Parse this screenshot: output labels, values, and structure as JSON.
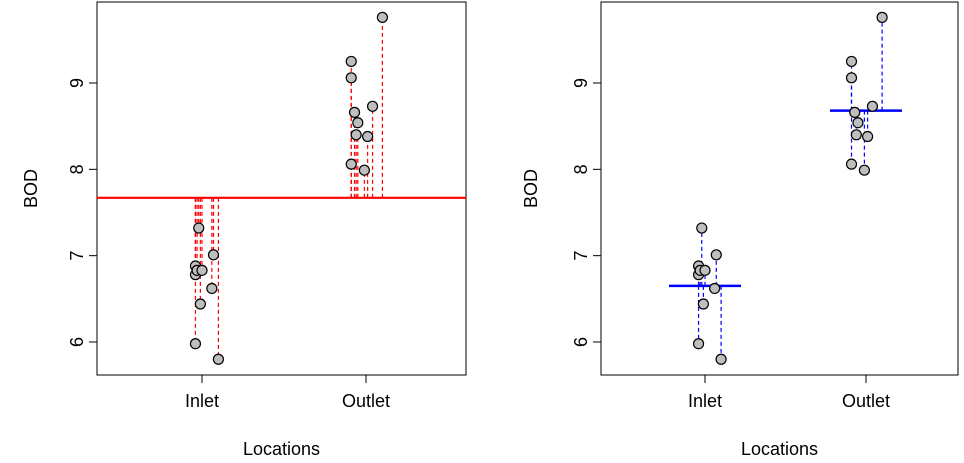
{
  "chart_data": [
    {
      "type": "scatter",
      "title": "",
      "xlabel": "Locations",
      "ylabel": "BOD",
      "categories": [
        "Inlet",
        "Outlet"
      ],
      "ylim": [
        5.8,
        9.8
      ],
      "yticks": [
        "6",
        "7",
        "8",
        "9"
      ],
      "grid": false,
      "reference_line": {
        "label": "",
        "value": 7.67,
        "color": "#ff0000",
        "style": "grand-mean"
      },
      "residual_color": "#ff0000",
      "point_fill": "#bebebe",
      "series": [
        {
          "category": "Inlet",
          "points": [
            {
              "x": 0.96,
              "y": 5.98
            },
            {
              "x": 0.96,
              "y": 6.88
            },
            {
              "x": 0.96,
              "y": 6.78
            },
            {
              "x": 0.97,
              "y": 6.83
            },
            {
              "x": 0.98,
              "y": 7.32
            },
            {
              "x": 0.99,
              "y": 6.44
            },
            {
              "x": 1.0,
              "y": 6.83
            },
            {
              "x": 1.06,
              "y": 6.62
            },
            {
              "x": 1.07,
              "y": 7.01
            },
            {
              "x": 1.1,
              "y": 5.8
            }
          ]
        },
        {
          "category": "Outlet",
          "points": [
            {
              "x": 1.91,
              "y": 8.06
            },
            {
              "x": 1.91,
              "y": 9.06
            },
            {
              "x": 1.91,
              "y": 9.25
            },
            {
              "x": 1.93,
              "y": 8.66
            },
            {
              "x": 1.94,
              "y": 8.4
            },
            {
              "x": 1.95,
              "y": 8.54
            },
            {
              "x": 1.99,
              "y": 7.99
            },
            {
              "x": 2.01,
              "y": 8.38
            },
            {
              "x": 2.04,
              "y": 8.73
            },
            {
              "x": 2.1,
              "y": 9.76
            }
          ]
        }
      ]
    },
    {
      "type": "scatter",
      "title": "",
      "xlabel": "Locations",
      "ylabel": "BOD",
      "categories": [
        "Inlet",
        "Outlet"
      ],
      "ylim": [
        5.8,
        9.8
      ],
      "yticks": [
        "6",
        "7",
        "8",
        "9"
      ],
      "grid": false,
      "group_means": [
        {
          "category": "Inlet",
          "value": 6.65
        },
        {
          "category": "Outlet",
          "value": 8.68
        }
      ],
      "mean_color": "#0000ff",
      "residual_color": "#0000ff",
      "point_fill": "#bebebe",
      "series": [
        {
          "category": "Inlet",
          "points": [
            {
              "x": 0.96,
              "y": 5.98
            },
            {
              "x": 0.96,
              "y": 6.88
            },
            {
              "x": 0.96,
              "y": 6.78
            },
            {
              "x": 0.97,
              "y": 6.83
            },
            {
              "x": 0.98,
              "y": 7.32
            },
            {
              "x": 0.99,
              "y": 6.44
            },
            {
              "x": 1.0,
              "y": 6.83
            },
            {
              "x": 1.06,
              "y": 6.62
            },
            {
              "x": 1.07,
              "y": 7.01
            },
            {
              "x": 1.1,
              "y": 5.8
            }
          ]
        },
        {
          "category": "Outlet",
          "points": [
            {
              "x": 1.91,
              "y": 8.06
            },
            {
              "x": 1.91,
              "y": 9.06
            },
            {
              "x": 1.91,
              "y": 9.25
            },
            {
              "x": 1.93,
              "y": 8.66
            },
            {
              "x": 1.94,
              "y": 8.4
            },
            {
              "x": 1.95,
              "y": 8.54
            },
            {
              "x": 1.99,
              "y": 7.99
            },
            {
              "x": 2.01,
              "y": 8.38
            },
            {
              "x": 2.04,
              "y": 8.73
            },
            {
              "x": 2.1,
              "y": 9.76
            }
          ]
        }
      ]
    }
  ]
}
